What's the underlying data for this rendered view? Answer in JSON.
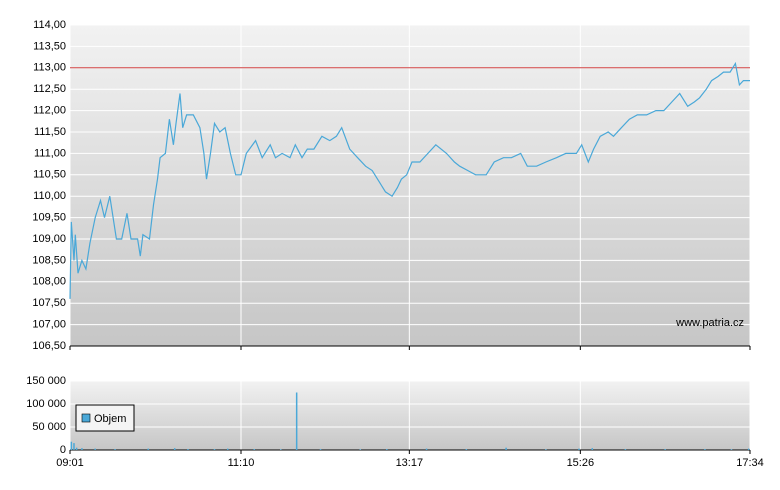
{
  "chart_data": [
    {
      "type": "line",
      "x": [
        "09:01",
        "09:02",
        "09:04",
        "09:05",
        "09:07",
        "09:10",
        "09:13",
        "09:16",
        "09:20",
        "09:24",
        "09:27",
        "09:31",
        "09:36",
        "09:40",
        "09:44",
        "09:47",
        "09:52",
        "09:54",
        "09:56",
        "10:01",
        "10:04",
        "10:07",
        "10:09",
        "10:13",
        "10:16",
        "10:19",
        "10:21",
        "10:24",
        "10:26",
        "10:29",
        "10:34",
        "10:39",
        "10:42",
        "10:44",
        "10:47",
        "10:50",
        "10:54",
        "10:58",
        "11:02",
        "11:06",
        "11:10",
        "11:14",
        "11:21",
        "11:26",
        "11:32",
        "11:36",
        "11:41",
        "11:47",
        "11:51",
        "11:56",
        "12:00",
        "12:05",
        "12:11",
        "12:17",
        "12:22",
        "12:26",
        "12:32",
        "12:38",
        "12:44",
        "12:49",
        "12:53",
        "12:59",
        "13:04",
        "13:08",
        "13:11",
        "13:15",
        "13:19",
        "13:25",
        "13:31",
        "13:37",
        "13:45",
        "13:51",
        "13:55",
        "14:01",
        "14:07",
        "14:15",
        "14:21",
        "14:28",
        "14:34",
        "14:41",
        "14:46",
        "14:53",
        "15:00",
        "15:08",
        "15:15",
        "15:23",
        "15:27",
        "15:32",
        "15:36",
        "15:41",
        "15:47",
        "15:51",
        "15:57",
        "16:03",
        "16:09",
        "16:16",
        "16:23",
        "16:29",
        "16:35",
        "16:41",
        "16:47",
        "16:52",
        "16:56",
        "17:01",
        "17:05",
        "17:10",
        "17:14",
        "17:19",
        "17:23",
        "17:26",
        "17:29",
        "17:34"
      ],
      "series": [
        {
          "color": "#4aa8d8",
          "values": [
            107.6,
            109.4,
            108.5,
            109.1,
            108.2,
            108.5,
            108.3,
            108.9,
            109.5,
            109.9,
            109.5,
            110.0,
            109.0,
            109.0,
            109.6,
            109.0,
            109.0,
            108.6,
            109.1,
            109.0,
            109.8,
            110.4,
            110.9,
            111.0,
            111.8,
            111.2,
            111.7,
            112.4,
            111.6,
            111.9,
            111.9,
            111.6,
            111.0,
            110.4,
            111.0,
            111.7,
            111.5,
            111.6,
            111.0,
            110.5,
            110.5,
            111.0,
            111.3,
            110.9,
            111.2,
            110.9,
            111.0,
            110.9,
            111.2,
            110.9,
            111.1,
            111.1,
            111.4,
            111.3,
            111.4,
            111.6,
            111.1,
            110.9,
            110.7,
            110.6,
            110.4,
            110.1,
            110.0,
            110.2,
            110.4,
            110.5,
            110.8,
            110.8,
            111.0,
            111.2,
            111.0,
            110.8,
            110.7,
            110.6,
            110.5,
            110.5,
            110.8,
            110.9,
            110.9,
            111.0,
            110.7,
            110.7,
            110.8,
            110.9,
            111.0,
            111.0,
            111.2,
            110.8,
            111.1,
            111.4,
            111.5,
            111.4,
            111.6,
            111.8,
            111.9,
            111.9,
            112.0,
            112.0,
            112.2,
            112.4,
            112.1,
            112.2,
            112.3,
            112.5,
            112.7,
            112.8,
            112.9,
            112.9,
            113.1,
            112.6,
            112.7,
            112.7
          ]
        }
      ],
      "reference_line": {
        "value": 113,
        "color": "#d04040"
      },
      "xlim": [
        "09:01",
        "17:34"
      ],
      "xticks": [
        "09:01",
        "11:10",
        "13:17",
        "15:26",
        "17:34"
      ],
      "ylim": [
        106.5,
        114
      ],
      "yticks": [
        {
          "value": 106.5,
          "label": "106,50"
        },
        {
          "value": 107,
          "label": "107,00"
        },
        {
          "value": 107.5,
          "label": "107,50"
        },
        {
          "value": 108,
          "label": "108,00"
        },
        {
          "value": 108.5,
          "label": "108,50"
        },
        {
          "value": 109,
          "label": "109,00"
        },
        {
          "value": 109.5,
          "label": "109,50"
        },
        {
          "value": 110,
          "label": "110,00"
        },
        {
          "value": 110.5,
          "label": "110,50"
        },
        {
          "value": 111,
          "label": "111,00"
        },
        {
          "value": 111.5,
          "label": "111,50"
        },
        {
          "value": 112,
          "label": "112,00"
        },
        {
          "value": 112.5,
          "label": "112,50"
        },
        {
          "value": 113,
          "label": "113,00"
        },
        {
          "value": 113.5,
          "label": "113,50"
        },
        {
          "value": 114,
          "label": "114,00"
        }
      ],
      "grid": true,
      "annotation": "www.patria.cz"
    },
    {
      "type": "bar",
      "x": [
        "09:02",
        "09:04",
        "09:06",
        "09:10",
        "09:20",
        "09:35",
        "10:00",
        "10:20",
        "10:30",
        "10:50",
        "11:00",
        "11:20",
        "11:40",
        "11:52",
        "12:10",
        "12:40",
        "13:00",
        "13:30",
        "14:00",
        "14:30",
        "15:00",
        "15:25",
        "15:35",
        "16:00",
        "16:30",
        "17:00",
        "17:20",
        "17:33"
      ],
      "series": [
        {
          "name": "Objem",
          "color": "#4aa8d8",
          "values": [
            18000,
            15000,
            5000,
            4000,
            3000,
            2000,
            3000,
            4000,
            2000,
            2000,
            3000,
            2000,
            1500,
            125000,
            2000,
            1500,
            2000,
            3000,
            2000,
            5000,
            1500,
            3000,
            4000,
            2000,
            2000,
            2000,
            1500,
            3000
          ]
        }
      ],
      "xlim": [
        "09:01",
        "17:34"
      ],
      "xticks": [
        "09:01",
        "11:10",
        "13:17",
        "15:26",
        "17:34"
      ],
      "ylim": [
        0,
        150000
      ],
      "yticks": [
        0,
        {
          "value": 50000,
          "label": "50 000"
        },
        {
          "value": 100000,
          "label": "100 000"
        },
        {
          "value": 150000,
          "label": "150 000"
        }
      ],
      "grid": true,
      "legend": "upper-left"
    }
  ]
}
